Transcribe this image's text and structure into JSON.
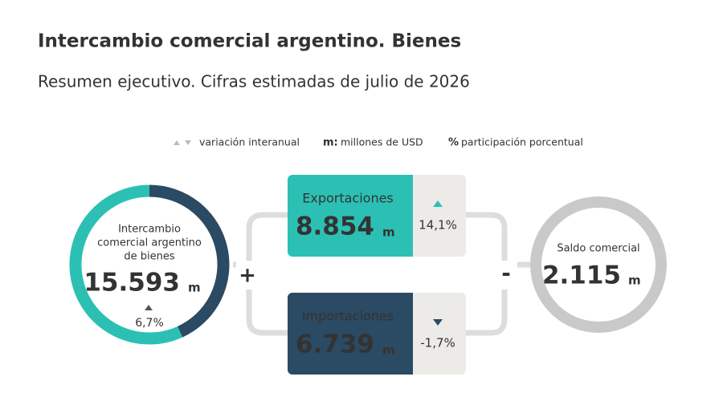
{
  "header": {
    "title": "Intercambio comercial argentino. Bienes",
    "subtitle": "Resumen ejecutivo. Cifras estimadas de julio de 2026"
  },
  "legend": {
    "variation": "variación interanual",
    "m_symbol": "m:",
    "m_text": "millones de USD",
    "pct_symbol": "%",
    "pct_text": "participación porcentual"
  },
  "total": {
    "label_lines": [
      "Intercambio",
      "comercial argentino",
      "de bienes"
    ],
    "value": {
      "value": 15593,
      "label": "15.593"
    },
    "unit": "m",
    "change": "6,7%"
  },
  "exports": {
    "label": "Exportaciones",
    "value": {
      "value": 8854,
      "label": "8.854"
    },
    "unit": "m",
    "change": "14,1%",
    "color": "#2cc0b4"
  },
  "imports": {
    "label": "Importaciones",
    "value": {
      "value": 6739,
      "label": "6.739"
    },
    "unit": "m",
    "change": "-1,7%",
    "color": "#2b4a63"
  },
  "balance": {
    "label": "Saldo comercial",
    "value": {
      "value": 2115,
      "label": "2.115"
    },
    "unit": "m"
  },
  "operators": {
    "plus": "+",
    "minus": "-"
  }
}
